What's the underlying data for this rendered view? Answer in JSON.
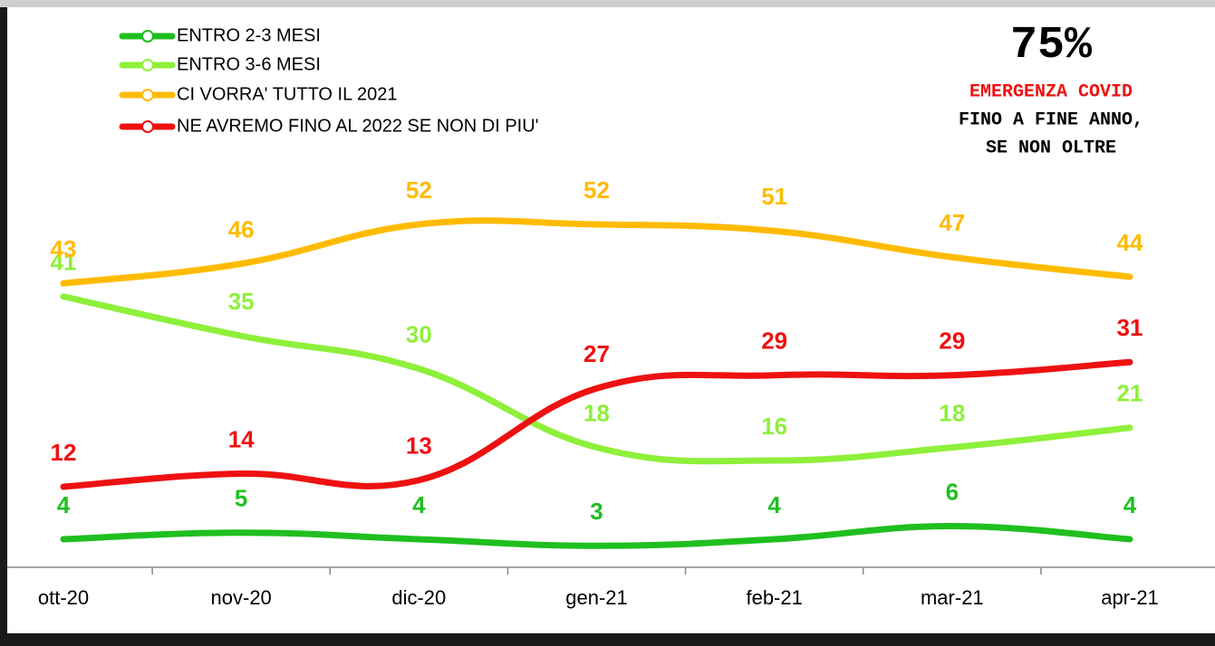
{
  "chart_data": {
    "type": "line",
    "categories": [
      "ott-20",
      "nov-20",
      "dic-20",
      "gen-21",
      "feb-21",
      "mar-21",
      "apr-21"
    ],
    "series": [
      {
        "name": "ENTRO 2-3 MESI",
        "color": "#1fbf1f",
        "values": [
          4,
          5,
          4,
          3,
          4,
          6,
          4
        ]
      },
      {
        "name": "ENTRO 3-6 MESI",
        "color": "#8ef03a",
        "values": [
          41,
          35,
          30,
          18,
          16,
          18,
          21
        ]
      },
      {
        "name": "CI VORRA' TUTTO IL 2021",
        "color": "#ffbb00",
        "values": [
          43,
          46,
          52,
          52,
          51,
          47,
          44
        ]
      },
      {
        "name": "NE AVREMO FINO AL 2022 SE NON DI PIU'",
        "color": "#ee1111",
        "values": [
          12,
          14,
          13,
          27,
          29,
          29,
          31
        ]
      }
    ],
    "ylim": [
      0,
      60
    ],
    "legend": "upper left",
    "annotation": {
      "headline": "75%",
      "lines": [
        "EMERGENZA COVID",
        "FINO A FINE ANNO,",
        "SE NON OLTRE"
      ]
    }
  }
}
